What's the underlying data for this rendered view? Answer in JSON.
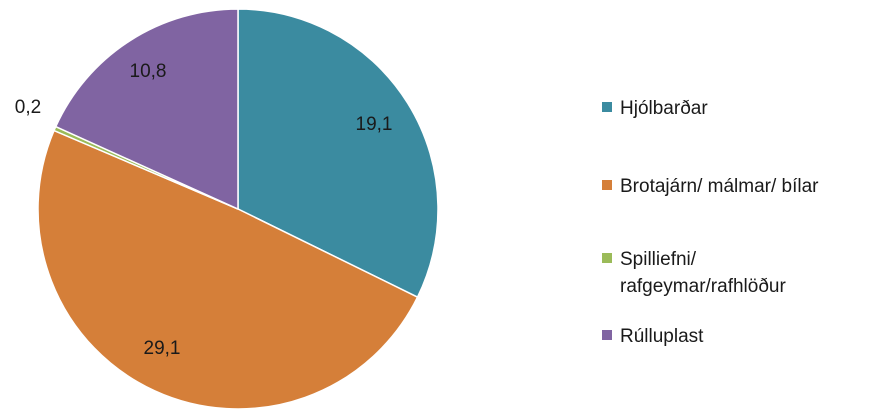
{
  "chart_data": {
    "type": "pie",
    "slices": [
      {
        "label": "Hjólbarðar",
        "value": 19.1,
        "display": "19,1",
        "color": "#3b8ba0"
      },
      {
        "label": "Brotajárn/ málmar/ bílar",
        "value": 29.1,
        "display": "29,1",
        "color": "#d57f39"
      },
      {
        "label": "Spilliefni/ rafgeymar/rafhlöður",
        "legend_lines": [
          "Spilliefni/",
          "rafgeymar/rafhlöður"
        ],
        "value": 0.2,
        "display": "0,2",
        "color": "#9bbb59"
      },
      {
        "label": "Rúlluplast",
        "value": 10.8,
        "display": "10,8",
        "color": "#8064a2"
      }
    ],
    "start_angle": "12 o'clock",
    "direction": "clockwise",
    "legend_position": "right"
  }
}
